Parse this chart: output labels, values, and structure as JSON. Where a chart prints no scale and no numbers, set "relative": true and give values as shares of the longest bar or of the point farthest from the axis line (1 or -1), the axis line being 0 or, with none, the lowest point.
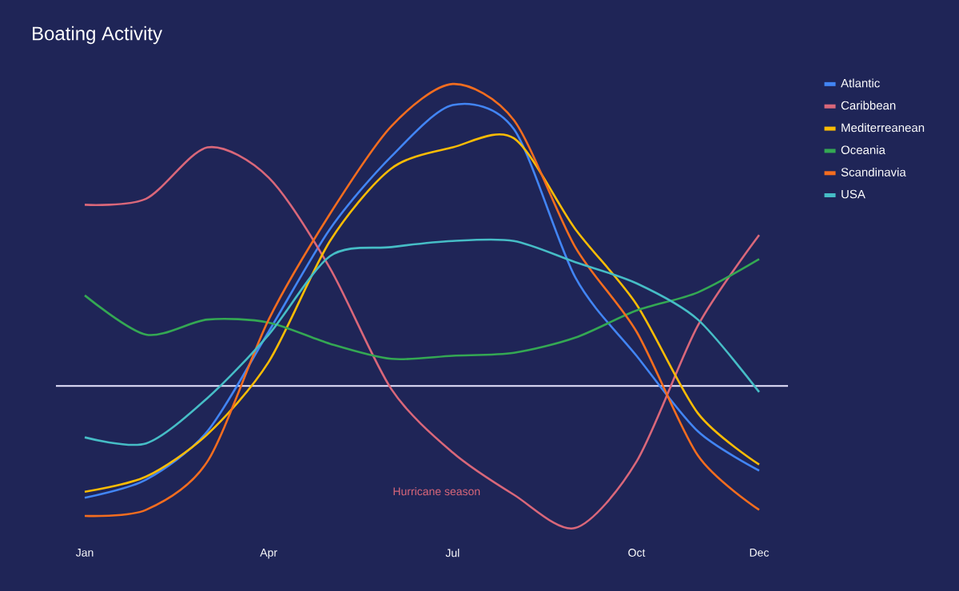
{
  "chart_data": {
    "type": "line",
    "title": "Boating Activity",
    "relative": true,
    "legend": "top right",
    "marker": "none",
    "categories": [
      "Jan",
      null,
      null,
      "Apr",
      null,
      null,
      "Jul",
      null,
      null,
      "Oct",
      null,
      "Dec"
    ],
    "series": [
      {
        "name": "Atlantic",
        "color": "#4285f4",
        "values": [
          -0.37,
          -0.31,
          -0.15,
          0.18,
          0.52,
          0.76,
          0.93,
          0.85,
          0.36,
          0.1,
          -0.15,
          -0.28
        ]
      },
      {
        "name": "Caribbean",
        "color": "#d9677a",
        "values": [
          0.6,
          0.62,
          0.79,
          0.69,
          0.39,
          -0.01,
          -0.22,
          -0.36,
          -0.47,
          -0.25,
          0.2,
          0.5
        ]
      },
      {
        "name": "Mediterreanean",
        "color": "#fbbc05",
        "values": [
          -0.35,
          -0.3,
          -0.16,
          0.08,
          0.48,
          0.72,
          0.79,
          0.82,
          0.52,
          0.27,
          -0.09,
          -0.26
        ]
      },
      {
        "name": "Oceania",
        "color": "#34a853",
        "values": [
          0.3,
          0.17,
          0.22,
          0.21,
          0.14,
          0.09,
          0.1,
          0.11,
          0.16,
          0.25,
          0.31,
          0.42
        ]
      },
      {
        "name": "Scandinavia",
        "color": "#f46d1f",
        "values": [
          -0.43,
          -0.41,
          -0.25,
          0.22,
          0.57,
          0.86,
          1,
          0.88,
          0.46,
          0.18,
          -0.23,
          -0.41
        ]
      },
      {
        "name": "USA",
        "color": "#46bdc6",
        "values": [
          -0.17,
          -0.19,
          -0.04,
          0.17,
          0.43,
          0.46,
          0.48,
          0.48,
          0.41,
          0.34,
          0.22,
          -0.02
        ]
      }
    ],
    "ref_lines": [
      {
        "axis": "y",
        "value": 0,
        "color": "#e8e6ff"
      }
    ],
    "annotations": [
      "Hurricane season"
    ]
  }
}
